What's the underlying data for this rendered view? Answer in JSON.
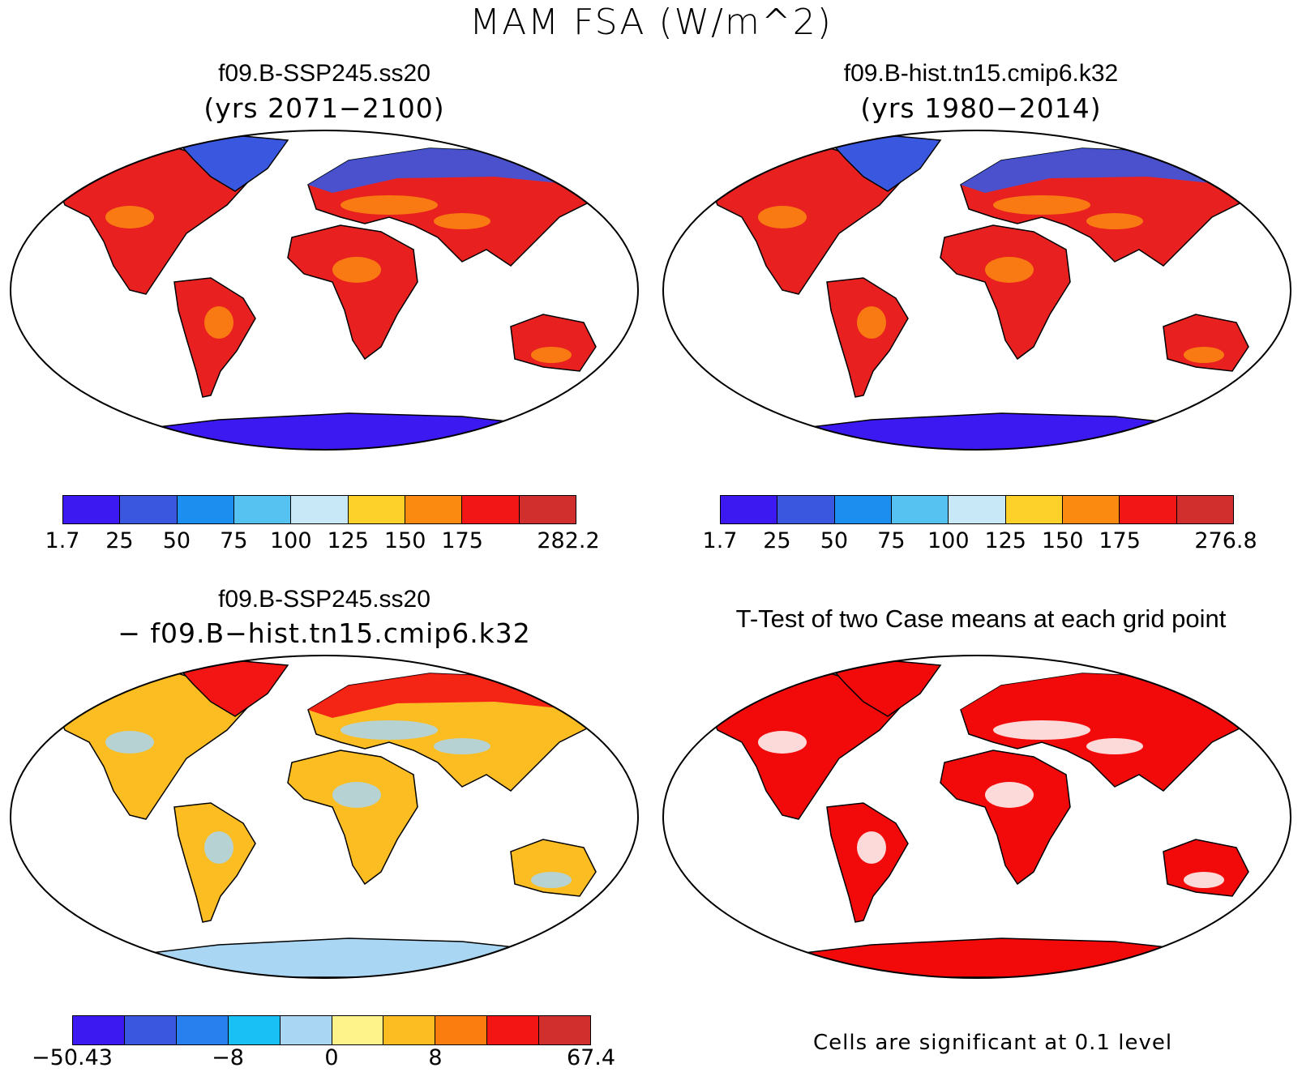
{
  "main_title": "MAM FSA (W/m^2)",
  "panels": {
    "top_left": {
      "title": "f09.B-SSP245.ss20",
      "subtitle": "(yrs 2071−2100)"
    },
    "top_right": {
      "title": "f09.B-hist.tn15.cmip6.k32",
      "subtitle": "(yrs 1980−2014)"
    },
    "bottom_left": {
      "title": "f09.B-SSP245.ss20",
      "subtitle": "− f09.B−hist.tn15.cmip6.k32"
    },
    "bottom_right": {
      "title": "T-Test of two Case means at each grid point",
      "note": "Cells are significant at 0.1 level"
    }
  },
  "colorbars": {
    "abs_colors": [
      "#3b19f0",
      "#3a57e0",
      "#1c8ef0",
      "#55c2f2",
      "#c8e8f8",
      "#fdd02a",
      "#fb8b10",
      "#f21616",
      "#d12e2e"
    ],
    "top_left_labels": [
      "1.7",
      "25",
      "50",
      "75",
      "100",
      "125",
      "150",
      "175",
      "282.2"
    ],
    "top_right_labels": [
      "1.7",
      "25",
      "50",
      "75",
      "100",
      "125",
      "150",
      "175",
      "276.8"
    ],
    "diff_colors": [
      "#3b19f0",
      "#3a57e0",
      "#2880ef",
      "#19c0f5",
      "#a9d6f2",
      "#fdf38a",
      "#fbbd22",
      "#fb7d10",
      "#f31414",
      "#d12e2e"
    ],
    "diff_labels": [
      "−50.43",
      "−8",
      "0",
      "8",
      "67.4"
    ]
  },
  "map_fills": {
    "top_left": {
      "land": "#e82020",
      "north": "#3a57e0",
      "antarctica": "#3b19f0",
      "accent": "#fb8b10"
    },
    "top_right": {
      "land": "#e82020",
      "north": "#3a57e0",
      "antarctica": "#3b19f0",
      "accent": "#fb8b10"
    },
    "bottom_left": {
      "land": "#fbbd22",
      "north": "#f31414",
      "antarctica": "#a9d6f2",
      "accent": "#a9d6f2"
    },
    "bottom_right": {
      "land": "#f20a0a",
      "north": "#f20a0a",
      "antarctica": "#f20a0a",
      "accent": "#ffffff"
    }
  }
}
